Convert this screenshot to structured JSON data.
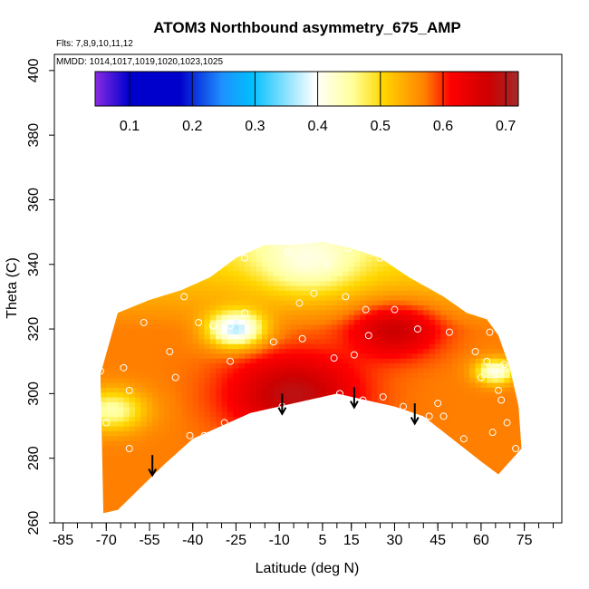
{
  "chart_data": {
    "type": "heatmap",
    "title": "ATOM3 Northbound asymmetry_675_AMP",
    "subtitle_flights": "Flts: 7,8,9,10,11,12",
    "subtitle_dates": "MMDD: 1014,1017,1019,1020,1023,1025",
    "xlabel": "Latitude (deg N)",
    "ylabel": "Theta (C)",
    "xlim": [
      -88,
      88
    ],
    "ylim": [
      260,
      405
    ],
    "xticks_major": [
      -85,
      -70,
      -55,
      -40,
      -25,
      -10,
      5,
      15,
      30,
      45,
      60,
      75
    ],
    "xticks_minor_step": 5,
    "yticks": [
      260,
      280,
      300,
      320,
      340,
      360,
      380,
      400
    ],
    "colorbar": {
      "range": [
        0.045,
        0.72
      ],
      "ticks": [
        0.1,
        0.2,
        0.3,
        0.4,
        0.5,
        0.6,
        0.7
      ],
      "tick_labels": [
        "0.1",
        "0.2",
        "0.3",
        "0.4",
        "0.5",
        "0.6",
        "0.7"
      ],
      "colors": [
        "#8a2be2",
        "#0000cd",
        "#1e90ff",
        "#00bfff",
        "#ffffff",
        "#ffd700",
        "#ff0000",
        "#a52a2a"
      ]
    },
    "domain_top": [
      [
        -72,
        306
      ],
      [
        -66,
        325
      ],
      [
        -55,
        329
      ],
      [
        -44,
        332
      ],
      [
        -34,
        336
      ],
      [
        -25,
        342
      ],
      [
        -15,
        346
      ],
      [
        -5,
        346
      ],
      [
        5,
        347
      ],
      [
        15,
        345
      ],
      [
        25,
        342
      ],
      [
        35,
        336
      ],
      [
        47,
        330
      ],
      [
        55,
        325
      ],
      [
        62,
        323
      ],
      [
        66,
        318
      ],
      [
        70,
        308
      ],
      [
        73,
        296
      ],
      [
        74,
        283
      ]
    ],
    "domain_bottom": [
      [
        -71,
        263
      ],
      [
        -66,
        264
      ],
      [
        -58,
        271
      ],
      [
        -50,
        278
      ],
      [
        -40,
        286
      ],
      [
        -30,
        290
      ],
      [
        -20,
        294
      ],
      [
        -10,
        296
      ],
      [
        0,
        298
      ],
      [
        10,
        300
      ],
      [
        20,
        298
      ],
      [
        30,
        296
      ],
      [
        40,
        293
      ],
      [
        50,
        286
      ],
      [
        60,
        279
      ],
      [
        66,
        275
      ]
    ],
    "points": [
      [
        -72,
        307
      ],
      [
        -70,
        291
      ],
      [
        -68,
        325
      ],
      [
        -64,
        308
      ],
      [
        -62,
        301
      ],
      [
        -62,
        283
      ],
      [
        -57,
        322
      ],
      [
        -48,
        313
      ],
      [
        -46,
        305
      ],
      [
        -43,
        330
      ],
      [
        -41,
        287
      ],
      [
        -38,
        322
      ],
      [
        -36,
        287
      ],
      [
        -33,
        321
      ],
      [
        -29,
        291
      ],
      [
        -27,
        310
      ],
      [
        -27,
        321
      ],
      [
        -22,
        325
      ],
      [
        -22,
        342
      ],
      [
        -12,
        316
      ],
      [
        -9,
        296
      ],
      [
        -7,
        344
      ],
      [
        -3,
        328
      ],
      [
        -2,
        317
      ],
      [
        2,
        331
      ],
      [
        7,
        340
      ],
      [
        9,
        311
      ],
      [
        11,
        300
      ],
      [
        13,
        330
      ],
      [
        14,
        345
      ],
      [
        16,
        312
      ],
      [
        19,
        298
      ],
      [
        20,
        326
      ],
      [
        21,
        318
      ],
      [
        25,
        342
      ],
      [
        26,
        299
      ],
      [
        30,
        326
      ],
      [
        33,
        296
      ],
      [
        38,
        320
      ],
      [
        42,
        293
      ],
      [
        45,
        297
      ],
      [
        47,
        293
      ],
      [
        49,
        319
      ],
      [
        54,
        286
      ],
      [
        58,
        313
      ],
      [
        60,
        305
      ],
      [
        62,
        310
      ],
      [
        63,
        319
      ],
      [
        64,
        288
      ],
      [
        66,
        301
      ],
      [
        67,
        298
      ],
      [
        68,
        309
      ],
      [
        69,
        291
      ],
      [
        72,
        283
      ],
      [
        68,
        275
      ]
    ],
    "arrows": [
      [
        -54,
        281
      ],
      [
        -9,
        300
      ],
      [
        16,
        302
      ],
      [
        37,
        297
      ]
    ],
    "grid_field": {
      "source": "piecewise-linear approximation of the plotted color field",
      "components": [
        {
          "lon": -5,
          "lat": 300,
          "amplitude": 0.12,
          "width": 22
        },
        {
          "lon": 30,
          "lat": 320,
          "amplitude": 0.1,
          "width": 15
        },
        {
          "lon": -25,
          "lat": 320,
          "amplitude": -0.2,
          "width": 10
        },
        {
          "lon": 65,
          "lat": 307,
          "amplitude": -0.16,
          "width": 7
        },
        {
          "lon": -68,
          "lat": 295,
          "amplitude": -0.12,
          "width": 12
        },
        {
          "lon": 0,
          "lat": 340,
          "amplitude": -0.08,
          "width": 18
        }
      ],
      "base": 0.57
    }
  }
}
